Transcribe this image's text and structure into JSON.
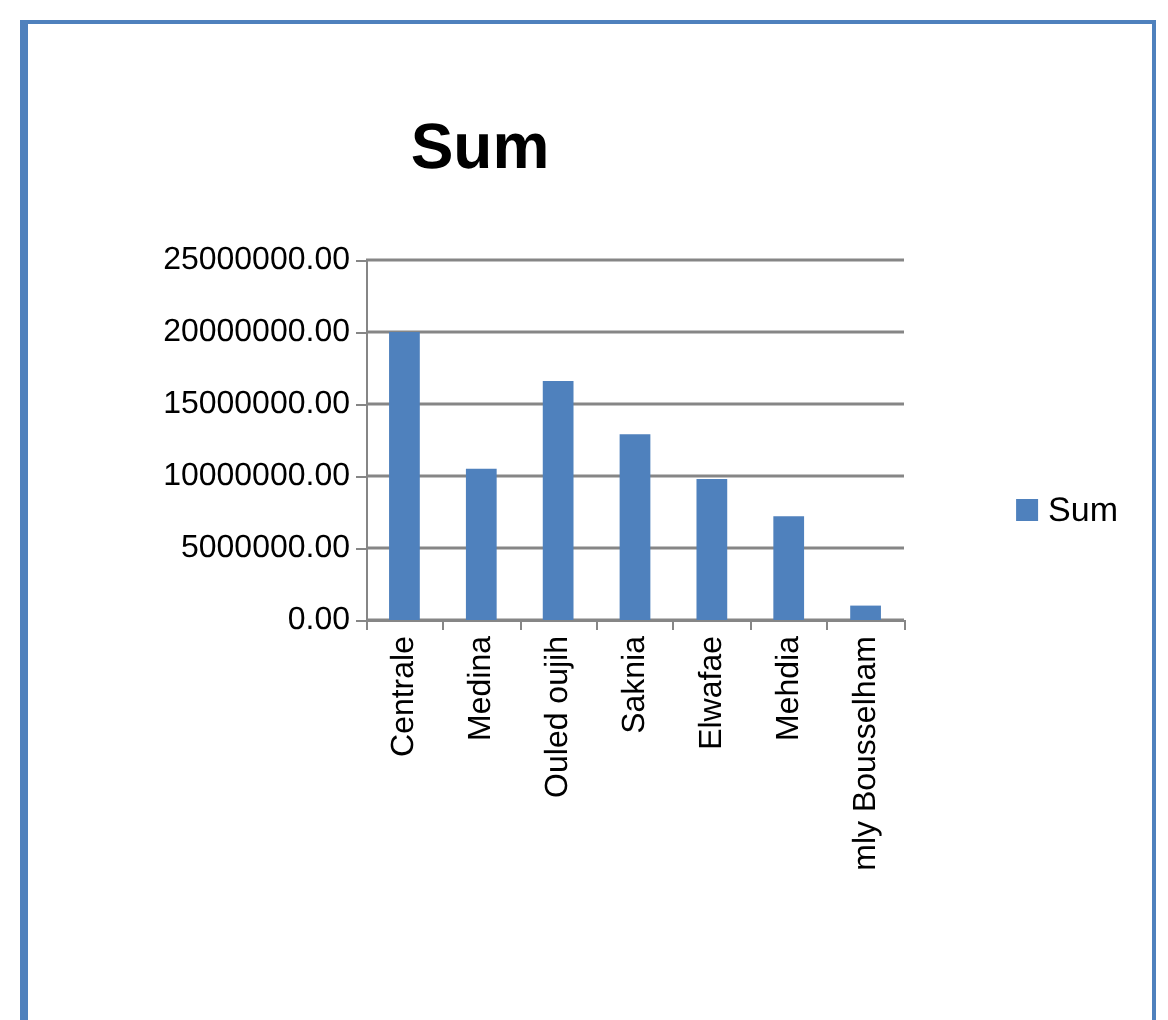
{
  "chart_data": {
    "type": "bar",
    "title": "Sum",
    "categories": [
      "Centrale",
      "Medina",
      "Ouled oujih",
      "Saknia",
      "Elwafae",
      "Mehdia",
      "mly Bousselham"
    ],
    "series": [
      {
        "name": "Sum",
        "color": "#4f81bd",
        "values": [
          20000000,
          10500000,
          16600000,
          12900000,
          9800000,
          7200000,
          1000000
        ]
      }
    ],
    "ylim": [
      0,
      25000000
    ],
    "yticks": [
      {
        "value": 0,
        "label": "0.00"
      },
      {
        "value": 5000000,
        "label": "5000000.00"
      },
      {
        "value": 10000000,
        "label": "10000000.00"
      },
      {
        "value": 15000000,
        "label": "15000000.00"
      },
      {
        "value": 20000000,
        "label": "20000000.00"
      },
      {
        "value": 25000000,
        "label": "25000000.00"
      }
    ],
    "grid": "y",
    "legend": "right"
  }
}
